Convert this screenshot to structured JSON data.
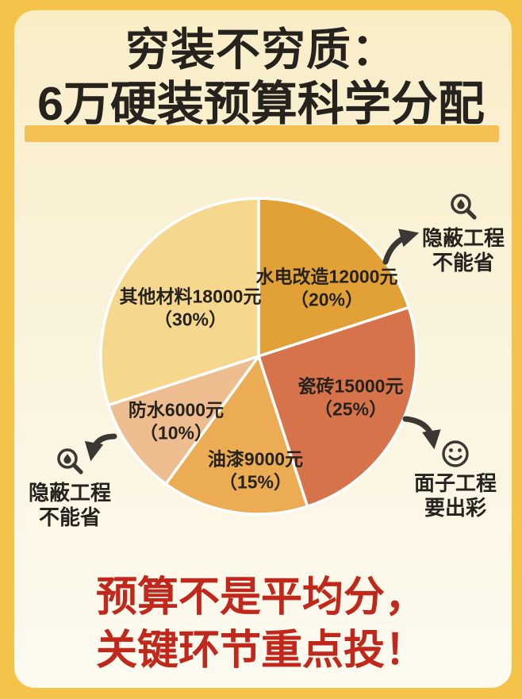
{
  "page": {
    "title_line1": "穷装不穷质：",
    "title_line2": "6万硬装预算科学分配"
  },
  "footer": {
    "line1": "预算不是平均分，",
    "line2": "关键环节重点投！"
  },
  "annotations": {
    "top_right": {
      "icon": "magnifier-droplet-icon",
      "line1": "隐蔽工程",
      "line2": "不能省"
    },
    "bottom_left": {
      "icon": "magnifier-droplet-icon",
      "line1": "隐蔽工程",
      "line2": "不能省"
    },
    "bottom_right": {
      "icon": "smiley-icon",
      "line1": "面子工程",
      "line2": "要出彩"
    }
  },
  "colors": {
    "frame_border": "#F6C34A",
    "panel_top": "#F9EDC6",
    "panel_bottom": "#FDFAF0",
    "title_highlight": "#F5C053",
    "footer_red": "#C1271B",
    "ink": "#26231E",
    "icon_arrow": "#3B3833",
    "slice_separator": "#FFFFFF"
  },
  "chart_data": {
    "type": "pie",
    "title": "6万硬装预算科学分配",
    "total": 60000,
    "unit": "元",
    "start_angle_deg": 0,
    "direction": "clockwise",
    "legend": "none",
    "labels_inside": true,
    "slices": [
      {
        "label": "水电改造",
        "value": 12000,
        "pct": 20,
        "color": "#E2A136",
        "display": [
          "水电改造12000元",
          "（20%）"
        ]
      },
      {
        "label": "瓷砖",
        "value": 15000,
        "pct": 25,
        "color": "#D6734A",
        "display": [
          "瓷砖15000元",
          "（25%）"
        ]
      },
      {
        "label": "油漆",
        "value": 9000,
        "pct": 15,
        "color": "#EBAC53",
        "display": [
          "油漆9000元",
          "（15%）"
        ]
      },
      {
        "label": "防水",
        "value": 6000,
        "pct": 10,
        "color": "#EDBD90",
        "display": [
          "防水6000元",
          "（10%）"
        ]
      },
      {
        "label": "其他材料",
        "value": 18000,
        "pct": 30,
        "color": "#F5D78D",
        "display": [
          "其他材料18000元",
          "（30%）"
        ]
      }
    ]
  }
}
